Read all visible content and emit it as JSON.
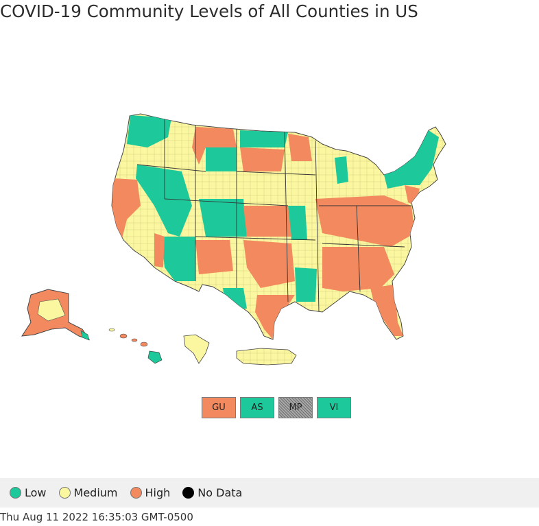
{
  "title": "COVID-19 Community Levels of All Counties in US",
  "colors": {
    "low": "#1dc99a",
    "medium": "#fbf7a1",
    "high": "#f2895f",
    "no_data": "#000000",
    "no_data_territory": "#8c8c8c",
    "border": "#444444"
  },
  "territories": [
    {
      "label": "GU",
      "level": "high"
    },
    {
      "label": "AS",
      "level": "low"
    },
    {
      "label": "MP",
      "level": "no_data"
    },
    {
      "label": "VI",
      "level": "low"
    }
  ],
  "legend": [
    {
      "label": "Low",
      "level": "low"
    },
    {
      "label": "Medium",
      "level": "medium"
    },
    {
      "label": "High",
      "level": "high"
    },
    {
      "label": "No Data",
      "level": "no_data"
    }
  ],
  "timestamp": "Thu Aug 11 2022 16:35:03 GMT-0500"
}
